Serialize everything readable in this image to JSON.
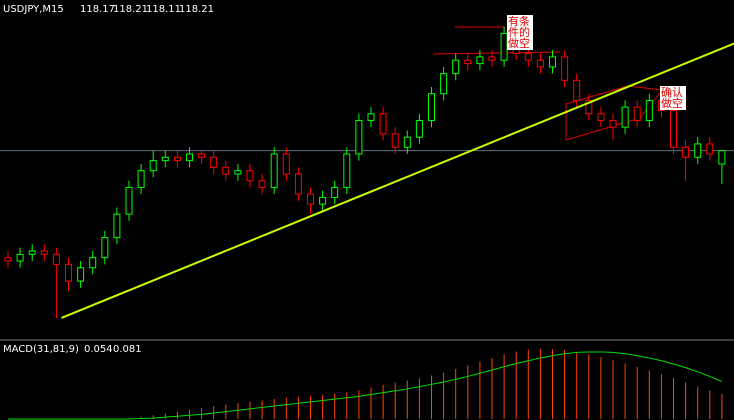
{
  "chart_data": {
    "type": "candlestick",
    "symbol": "USDJPY,M15",
    "header_values": [
      118.17,
      118.21,
      118.11,
      118.21
    ],
    "ylim": [
      117.65,
      118.66
    ],
    "up_color": "#00ff00",
    "down_color": "#ff0000",
    "open": [
      117.89,
      117.88,
      117.9,
      117.91,
      117.9,
      117.87,
      117.82,
      117.86,
      117.89,
      117.95,
      118.02,
      118.1,
      118.15,
      118.18,
      118.19,
      118.18,
      118.2,
      118.19,
      118.16,
      118.14,
      118.15,
      118.12,
      118.1,
      118.2,
      118.14,
      118.08,
      118.05,
      118.07,
      118.1,
      118.2,
      118.3,
      118.32,
      118.26,
      118.22,
      118.25,
      118.3,
      118.38,
      118.44,
      118.48,
      118.47,
      118.49,
      118.48,
      118.56,
      118.5,
      118.48,
      118.46,
      118.49,
      118.42,
      118.36,
      118.32,
      118.3,
      118.28,
      118.34,
      118.3,
      118.36,
      118.33,
      118.22,
      118.19,
      118.23,
      118.17
    ],
    "high": [
      117.91,
      117.92,
      117.93,
      117.93,
      117.92,
      117.89,
      117.88,
      117.91,
      117.97,
      118.04,
      118.12,
      118.17,
      118.21,
      118.21,
      118.21,
      118.22,
      118.21,
      118.21,
      118.18,
      118.17,
      118.17,
      118.14,
      118.22,
      118.22,
      118.16,
      118.1,
      118.09,
      118.12,
      118.22,
      118.32,
      118.34,
      118.34,
      118.28,
      118.27,
      118.32,
      118.4,
      118.46,
      118.5,
      118.5,
      118.51,
      118.51,
      118.58,
      118.58,
      118.52,
      118.5,
      118.51,
      118.51,
      118.44,
      118.38,
      118.34,
      118.32,
      118.36,
      118.36,
      118.38,
      118.38,
      118.35,
      118.24,
      118.25,
      118.25,
      118.21
    ],
    "low": [
      117.86,
      117.86,
      117.88,
      117.88,
      117.71,
      117.79,
      117.8,
      117.84,
      117.87,
      117.93,
      118.0,
      118.08,
      118.13,
      118.16,
      118.16,
      118.16,
      118.17,
      118.14,
      118.12,
      118.12,
      118.1,
      118.08,
      118.08,
      118.12,
      118.06,
      118.02,
      118.03,
      118.05,
      118.08,
      118.18,
      118.28,
      118.24,
      118.2,
      118.2,
      118.23,
      118.28,
      118.36,
      118.42,
      118.45,
      118.45,
      118.46,
      118.46,
      118.48,
      118.46,
      118.44,
      118.44,
      118.4,
      118.34,
      118.3,
      118.28,
      118.24,
      118.26,
      118.28,
      118.28,
      118.31,
      118.2,
      118.12,
      118.17,
      118.18,
      118.11
    ],
    "close": [
      117.88,
      117.9,
      117.91,
      117.9,
      117.87,
      117.82,
      117.86,
      117.89,
      117.95,
      118.02,
      118.1,
      118.15,
      118.18,
      118.19,
      118.18,
      118.2,
      118.19,
      118.16,
      118.14,
      118.15,
      118.12,
      118.1,
      118.2,
      118.14,
      118.08,
      118.05,
      118.07,
      118.1,
      118.2,
      118.3,
      118.32,
      118.26,
      118.22,
      118.25,
      118.3,
      118.38,
      118.44,
      118.48,
      118.47,
      118.49,
      118.48,
      118.56,
      118.5,
      118.48,
      118.46,
      118.49,
      118.42,
      118.36,
      118.32,
      118.3,
      118.28,
      118.34,
      118.3,
      118.36,
      118.33,
      118.22,
      118.19,
      118.23,
      118.2,
      118.21
    ],
    "bid_line": 118.21,
    "trendline": [
      117.71,
      118.53
    ],
    "trendline_color": "#c8ff00",
    "annotations": [
      "有条件的做空",
      "确认做空"
    ],
    "macd": {
      "label": "MACD(31,81,9)",
      "values_printed": [
        0.054,
        0.081
      ],
      "ylim": [
        0,
        0.16
      ],
      "hist_color": "#ff4400",
      "signal_color": "#00dd00",
      "histogram": [
        0,
        0,
        0,
        0,
        0,
        0,
        0,
        0,
        0,
        0,
        0.002,
        0.005,
        0.008,
        0.012,
        0.016,
        0.02,
        0.024,
        0.028,
        0.031,
        0.034,
        0.037,
        0.04,
        0.043,
        0.046,
        0.048,
        0.05,
        0.052,
        0.055,
        0.058,
        0.062,
        0.068,
        0.074,
        0.079,
        0.083,
        0.088,
        0.094,
        0.1,
        0.108,
        0.116,
        0.124,
        0.132,
        0.14,
        0.146,
        0.15,
        0.152,
        0.151,
        0.149,
        0.145,
        0.14,
        0.134,
        0.127,
        0.12,
        0.113,
        0.105,
        0.097,
        0.088,
        0.079,
        0.07,
        0.062,
        0.054
      ],
      "signal": [
        0,
        0,
        0,
        0,
        0,
        0,
        0,
        0,
        0,
        0,
        0,
        0.001,
        0.002,
        0.004,
        0.006,
        0.008,
        0.01,
        0.013,
        0.016,
        0.019,
        0.022,
        0.025,
        0.028,
        0.031,
        0.034,
        0.037,
        0.04,
        0.043,
        0.046,
        0.049,
        0.053,
        0.057,
        0.061,
        0.065,
        0.07,
        0.075,
        0.08,
        0.086,
        0.092,
        0.099,
        0.106,
        0.113,
        0.12,
        0.126,
        0.132,
        0.137,
        0.141,
        0.144,
        0.145,
        0.145,
        0.144,
        0.141,
        0.137,
        0.132,
        0.126,
        0.119,
        0.111,
        0.102,
        0.092,
        0.081
      ]
    }
  }
}
